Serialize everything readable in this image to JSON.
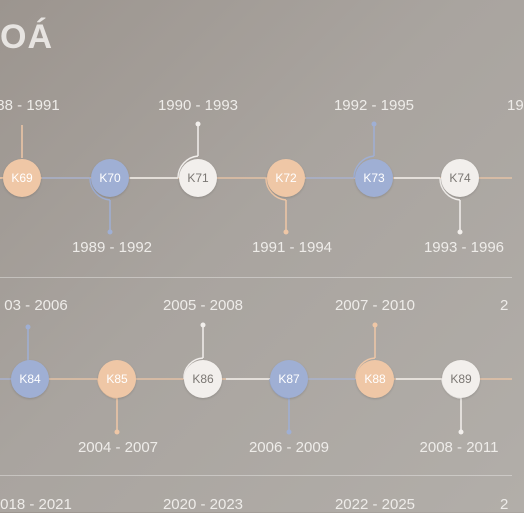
{
  "title": "OÁ",
  "colors": {
    "orange": "#efc7a6",
    "blue": "#9fafd4",
    "white": "#f2efec"
  },
  "row1": {
    "nodes": [
      {
        "label": "K69",
        "color": "orange"
      },
      {
        "label": "K70",
        "color": "blue"
      },
      {
        "label": "K71",
        "color": "white"
      },
      {
        "label": "K72",
        "color": "orange"
      },
      {
        "label": "K73",
        "color": "blue"
      },
      {
        "label": "K74",
        "color": "white"
      }
    ],
    "top_labels": [
      "88 - 1991",
      "1990 - 1993",
      "1992 - 1995",
      "19"
    ],
    "bottom_labels": [
      "1989 - 1992",
      "1991 - 1994",
      "1993 - 1996"
    ]
  },
  "row2": {
    "nodes": [
      {
        "label": "K84",
        "color": "blue"
      },
      {
        "label": "K85",
        "color": "orange"
      },
      {
        "label": "K86",
        "color": "white"
      },
      {
        "label": "K87",
        "color": "blue"
      },
      {
        "label": "K88",
        "color": "orange"
      },
      {
        "label": "K89",
        "color": "white"
      }
    ],
    "top_labels": [
      "03 - 2006",
      "2005 - 2008",
      "2007 - 2010",
      "2"
    ],
    "bottom_labels": [
      "2004 - 2007",
      "2006 - 2009",
      "2008 - 2011"
    ]
  },
  "row3": {
    "top_labels": [
      "018 - 2021",
      "2020 - 2023",
      "2022 - 2025",
      "2"
    ]
  }
}
